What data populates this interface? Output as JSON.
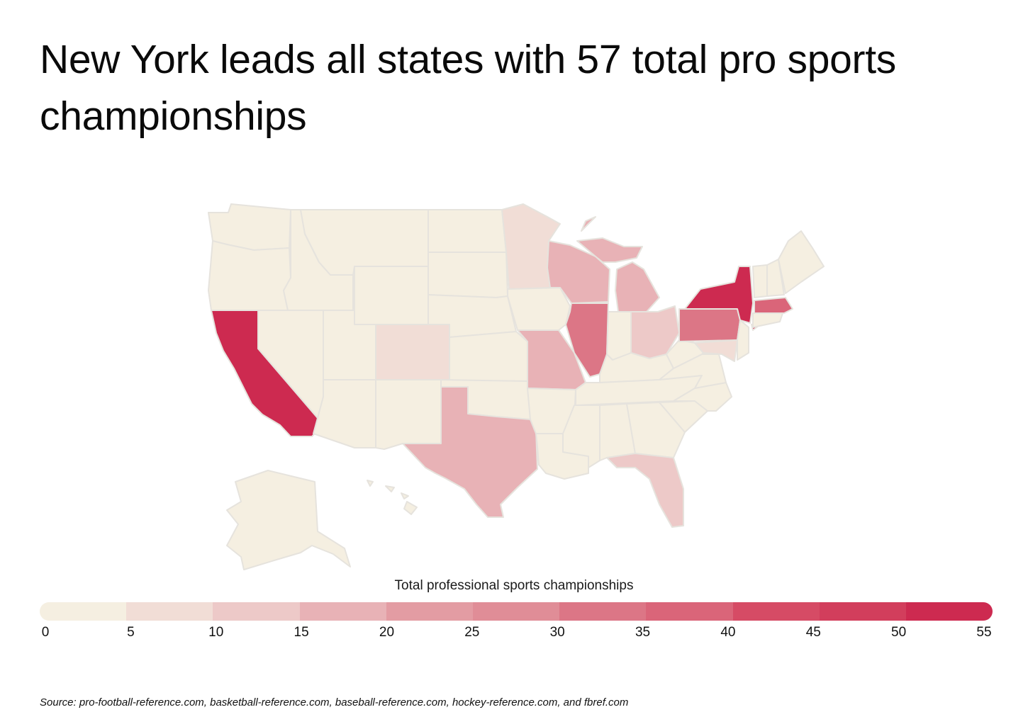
{
  "title": "New York leads all states with 57 total pro sports championships",
  "legend": {
    "title": "Total professional sports championships",
    "ticks": [
      "0",
      "5",
      "10",
      "15",
      "20",
      "25",
      "30",
      "35",
      "40",
      "45",
      "50",
      "55"
    ],
    "colors": [
      "#f5efe1",
      "#f1ddd6",
      "#edc9c8",
      "#e8b2b6",
      "#e39ca3",
      "#e08d97",
      "#dc7686",
      "#da6579",
      "#d64b65",
      "#d23e5c",
      "#cd2a50"
    ]
  },
  "chart_data": {
    "type": "choropleth",
    "metric": "Total professional sports championships",
    "scale": {
      "min": 0,
      "max": 55,
      "step": 5
    },
    "highlights": [
      {
        "state": "New York",
        "value": 57
      }
    ],
    "states": [
      {
        "state": "California",
        "value_bin": "50+"
      },
      {
        "state": "New York",
        "value_bin": "50+"
      },
      {
        "state": "Massachusetts",
        "value_bin": "35-40"
      },
      {
        "state": "Pennsylvania",
        "value_bin": "30-35"
      },
      {
        "state": "Illinois",
        "value_bin": "30-35"
      },
      {
        "state": "Michigan",
        "value_bin": "15-20"
      },
      {
        "state": "Wisconsin",
        "value_bin": "15-20"
      },
      {
        "state": "Missouri",
        "value_bin": "15-20"
      },
      {
        "state": "Texas",
        "value_bin": "15-20"
      },
      {
        "state": "Ohio",
        "value_bin": "10-15"
      },
      {
        "state": "Florida",
        "value_bin": "10-15"
      },
      {
        "state": "Minnesota",
        "value_bin": "5-10"
      },
      {
        "state": "Colorado",
        "value_bin": "5-10"
      },
      {
        "state": "Maryland",
        "value_bin": "5-10"
      },
      {
        "state": "Other states",
        "value_bin": "0-5"
      }
    ]
  },
  "source": "Source:  pro-football-reference.com, basketball-reference.com, baseball-reference.com, hockey-reference.com, and fbref.com"
}
